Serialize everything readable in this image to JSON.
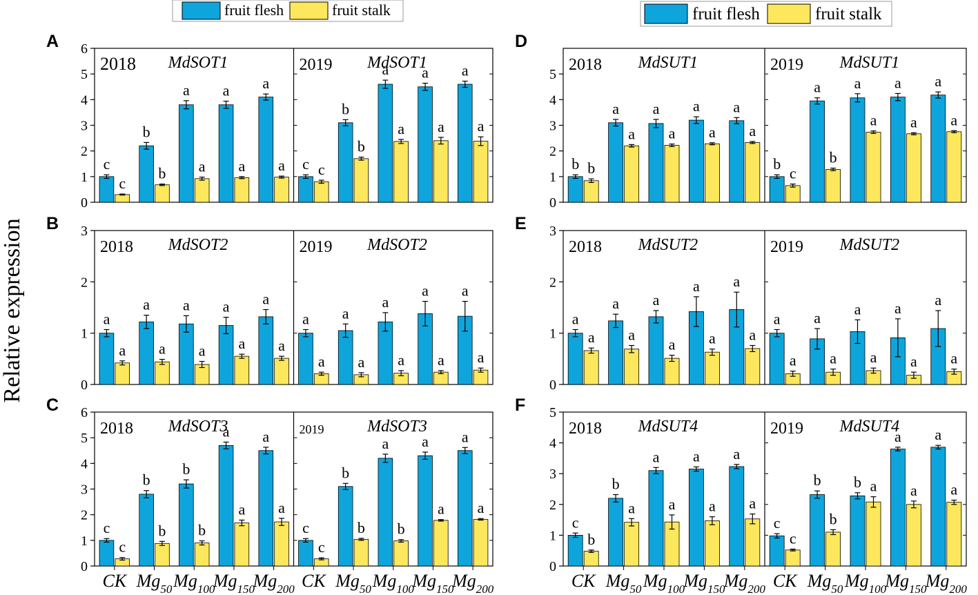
{
  "figure": {
    "ylabel": "Relative expression",
    "legend": [
      {
        "name": "fruit flesh",
        "color": "#0ea5dc"
      },
      {
        "name": "fruit stalk",
        "color": "#fde75c"
      }
    ],
    "categories": [
      {
        "base": "CK",
        "sub": ""
      },
      {
        "base": "Mg",
        "sub": "50"
      },
      {
        "base": "Mg",
        "sub": "100"
      },
      {
        "base": "Mg",
        "sub": "150"
      },
      {
        "base": "Mg",
        "sub": "200"
      }
    ]
  },
  "chart_data": [
    {
      "type": "bar",
      "letter": "A",
      "ylim": [
        0,
        6
      ],
      "yticks": [
        0,
        1,
        2,
        3,
        4,
        5,
        6
      ],
      "years": [
        {
          "year": "2018",
          "gene": "MdSOT1",
          "flesh": [
            1.0,
            2.2,
            3.8,
            3.8,
            4.1
          ],
          "flesh_err": [
            0.07,
            0.13,
            0.16,
            0.14,
            0.12
          ],
          "flesh_sig": [
            "c",
            "b",
            "a",
            "a",
            "a"
          ],
          "stalk": [
            0.3,
            0.68,
            0.92,
            0.96,
            0.98
          ],
          "stalk_err": [
            0.02,
            0.03,
            0.06,
            0.04,
            0.04
          ],
          "stalk_sig": [
            "c",
            "b",
            "a",
            "a",
            "a"
          ]
        },
        {
          "year": "2019",
          "gene": "MdSOT1",
          "flesh": [
            1.0,
            3.1,
            4.6,
            4.5,
            4.6
          ],
          "flesh_err": [
            0.07,
            0.12,
            0.16,
            0.14,
            0.12
          ],
          "flesh_sig": [
            "c",
            "b",
            "a",
            "a",
            "a"
          ],
          "stalk": [
            0.8,
            1.7,
            2.37,
            2.4,
            2.38
          ],
          "stalk_err": [
            0.06,
            0.06,
            0.08,
            0.13,
            0.17
          ],
          "stalk_sig": [
            "c",
            "b",
            "a",
            "a",
            "a"
          ]
        }
      ]
    },
    {
      "type": "bar",
      "letter": "B",
      "ylim": [
        0,
        3
      ],
      "yticks": [
        0,
        1,
        2,
        3
      ],
      "years": [
        {
          "year": "2018",
          "gene": "MdSOT2",
          "flesh": [
            1.0,
            1.22,
            1.18,
            1.15,
            1.32
          ],
          "flesh_err": [
            0.07,
            0.13,
            0.16,
            0.16,
            0.14
          ],
          "flesh_sig": [
            "a",
            "a",
            "a",
            "a",
            "a"
          ],
          "stalk": [
            0.42,
            0.44,
            0.39,
            0.55,
            0.51
          ],
          "stalk_err": [
            0.04,
            0.05,
            0.06,
            0.04,
            0.04
          ],
          "stalk_sig": [
            "a",
            "a",
            "a",
            "a",
            "a"
          ]
        },
        {
          "year": "2019",
          "gene": "MdSOT2",
          "flesh": [
            1.0,
            1.05,
            1.22,
            1.38,
            1.33
          ],
          "flesh_err": [
            0.07,
            0.13,
            0.18,
            0.24,
            0.29
          ],
          "flesh_sig": [
            "a",
            "a",
            "a",
            "a",
            "a"
          ],
          "stalk": [
            0.21,
            0.19,
            0.22,
            0.24,
            0.28
          ],
          "stalk_err": [
            0.03,
            0.04,
            0.05,
            0.03,
            0.04
          ],
          "stalk_sig": [
            "a",
            "a",
            "a",
            "a",
            "a"
          ]
        }
      ]
    },
    {
      "type": "bar",
      "letter": "C",
      "ylim": [
        0,
        6
      ],
      "yticks": [
        0,
        1,
        2,
        3,
        4,
        5,
        6
      ],
      "years": [
        {
          "year": "2018",
          "gene": "MdSOT3",
          "flesh": [
            1.0,
            2.8,
            3.2,
            4.7,
            4.5
          ],
          "flesh_err": [
            0.07,
            0.14,
            0.16,
            0.13,
            0.13
          ],
          "flesh_sig": [
            "c",
            "b",
            "b",
            "a",
            "a"
          ],
          "stalk": [
            0.28,
            0.88,
            0.9,
            1.68,
            1.72
          ],
          "stalk_err": [
            0.05,
            0.08,
            0.08,
            0.11,
            0.14
          ],
          "stalk_sig": [
            "c",
            "b",
            "b",
            "a",
            "a"
          ]
        },
        {
          "year": "2019",
          "gene": "MdSOT3",
          "flesh": [
            1.0,
            3.1,
            4.2,
            4.3,
            4.5
          ],
          "flesh_err": [
            0.07,
            0.12,
            0.16,
            0.14,
            0.12
          ],
          "flesh_sig": [
            "c",
            "b",
            "a",
            "a",
            "a"
          ],
          "stalk": [
            0.28,
            1.04,
            0.98,
            1.78,
            1.82
          ],
          "stalk_err": [
            0.04,
            0.04,
            0.05,
            0.03,
            0.03
          ],
          "stalk_sig": [
            "c",
            "b",
            "b",
            "a",
            "a"
          ]
        }
      ]
    },
    {
      "type": "bar",
      "letter": "D",
      "ylim": [
        0,
        6
      ],
      "yticks": [
        0,
        1,
        2,
        3,
        4,
        5
      ],
      "years": [
        {
          "year": "2018",
          "gene": "MdSUT1",
          "flesh": [
            1.0,
            3.1,
            3.07,
            3.2,
            3.18
          ],
          "flesh_err": [
            0.07,
            0.13,
            0.16,
            0.13,
            0.12
          ],
          "flesh_sig": [
            "b",
            "a",
            "a",
            "a",
            "a"
          ],
          "stalk": [
            0.84,
            2.2,
            2.22,
            2.28,
            2.33
          ],
          "stalk_err": [
            0.07,
            0.05,
            0.05,
            0.04,
            0.04
          ],
          "stalk_sig": [
            "b",
            "a",
            "a",
            "a",
            "a"
          ]
        },
        {
          "year": "2019",
          "gene": "MdSUT1",
          "flesh": [
            1.0,
            3.95,
            4.07,
            4.1,
            4.18
          ],
          "flesh_err": [
            0.07,
            0.12,
            0.16,
            0.14,
            0.12
          ],
          "flesh_sig": [
            "b",
            "a",
            "a",
            "a",
            "a"
          ],
          "stalk": [
            0.65,
            1.28,
            2.73,
            2.67,
            2.75
          ],
          "stalk_err": [
            0.06,
            0.05,
            0.05,
            0.04,
            0.04
          ],
          "stalk_sig": [
            "c",
            "b",
            "a",
            "a",
            "a"
          ]
        }
      ]
    },
    {
      "type": "bar",
      "letter": "E",
      "ylim": [
        0,
        3
      ],
      "yticks": [
        0,
        1,
        2,
        3
      ],
      "years": [
        {
          "year": "2018",
          "gene": "MdSUT2",
          "flesh": [
            1.0,
            1.24,
            1.32,
            1.42,
            1.46
          ],
          "flesh_err": [
            0.07,
            0.13,
            0.12,
            0.29,
            0.34
          ],
          "flesh_sig": [
            "a",
            "a",
            "a",
            "a",
            "a"
          ],
          "stalk": [
            0.66,
            0.69,
            0.51,
            0.63,
            0.7
          ],
          "stalk_err": [
            0.05,
            0.07,
            0.06,
            0.06,
            0.06
          ],
          "stalk_sig": [
            "a",
            "a",
            "a",
            "a",
            "a"
          ]
        },
        {
          "year": "2019",
          "gene": "MdSUT2",
          "flesh": [
            1.0,
            0.89,
            1.03,
            0.91,
            1.09
          ],
          "flesh_err": [
            0.07,
            0.2,
            0.23,
            0.37,
            0.35
          ],
          "flesh_sig": [
            "a",
            "a",
            "a",
            "a",
            "a"
          ],
          "stalk": [
            0.21,
            0.24,
            0.27,
            0.18,
            0.25
          ],
          "stalk_err": [
            0.05,
            0.06,
            0.05,
            0.06,
            0.05
          ],
          "stalk_sig": [
            "a",
            "a",
            "a",
            "a",
            "a"
          ]
        }
      ]
    },
    {
      "type": "bar",
      "letter": "F",
      "ylim": [
        0,
        5
      ],
      "yticks": [
        0,
        1,
        2,
        3,
        4,
        5
      ],
      "years": [
        {
          "year": "2018",
          "gene": "MdSUT4",
          "flesh": [
            1.0,
            2.2,
            3.1,
            3.15,
            3.23
          ],
          "flesh_err": [
            0.07,
            0.12,
            0.1,
            0.07,
            0.07
          ],
          "flesh_sig": [
            "c",
            "b",
            "a",
            "a",
            "a"
          ],
          "stalk": [
            0.48,
            1.42,
            1.43,
            1.47,
            1.53
          ],
          "stalk_err": [
            0.04,
            0.12,
            0.23,
            0.13,
            0.16
          ],
          "stalk_sig": [
            "b",
            "a",
            "a",
            "a",
            "a"
          ]
        },
        {
          "year": "2019",
          "gene": "MdSUT4",
          "flesh": [
            0.98,
            2.32,
            2.28,
            3.8,
            3.86
          ],
          "flesh_err": [
            0.07,
            0.12,
            0.1,
            0.06,
            0.06
          ],
          "flesh_sig": [
            "c",
            "b",
            "b",
            "a",
            "a"
          ],
          "stalk": [
            0.52,
            1.1,
            2.08,
            2.0,
            2.07
          ],
          "stalk_err": [
            0.03,
            0.08,
            0.17,
            0.11,
            0.07
          ],
          "stalk_sig": [
            "c",
            "b",
            "a",
            "a",
            "a"
          ]
        }
      ]
    }
  ]
}
